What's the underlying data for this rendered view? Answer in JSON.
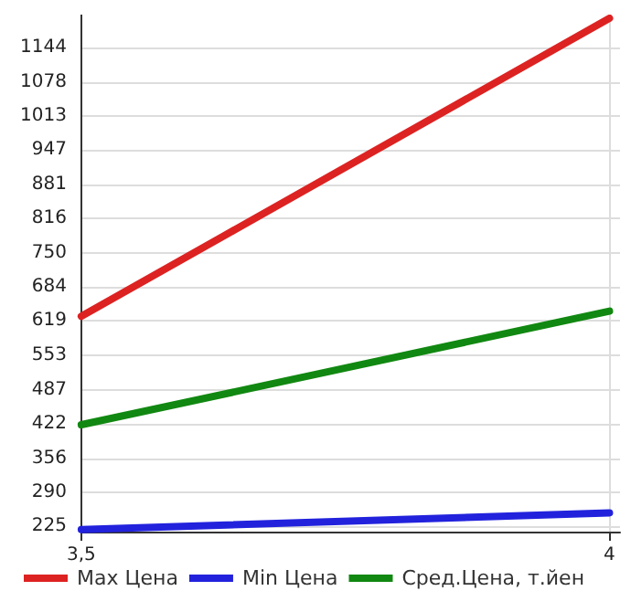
{
  "chart_data": {
    "type": "line",
    "x": [
      3.5,
      4
    ],
    "xlim": [
      3.5,
      4.01
    ],
    "xticks": [
      {
        "value": 3.5,
        "label": "3,5"
      },
      4
    ],
    "ylim": [
      215,
      1207
    ],
    "yticks": [
      225,
      290,
      356,
      422,
      487,
      553,
      619,
      684,
      750,
      816,
      881,
      947,
      1013,
      1078,
      1144
    ],
    "grid": true,
    "legend": "bottom",
    "marker": "none",
    "line_style": "solid",
    "series": [
      {
        "name": "Max Цена",
        "color": "#dd2222",
        "values": [
          628,
          1200
        ]
      },
      {
        "name": "Min Цена",
        "color": "#2222dd",
        "values": [
          219,
          251
        ]
      },
      {
        "name": "Сред.Цена, т.йен",
        "color": "#118811",
        "values": [
          420,
          638
        ]
      }
    ]
  }
}
